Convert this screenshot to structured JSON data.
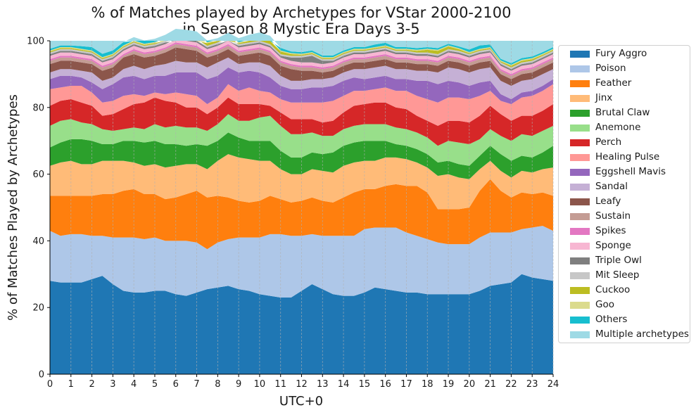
{
  "chart_data": {
    "type": "area",
    "stacked": true,
    "title": "% of Matches played by Archetypes for VStar 2000-2100\nin Season 8 Mystic Era Days 3-5",
    "xlabel": "UTC+0",
    "ylabel": "% of Matches Played by Archetypes",
    "xlim": [
      0,
      24
    ],
    "ylim": [
      0,
      100
    ],
    "x_ticks": [
      0,
      1,
      2,
      3,
      4,
      5,
      6,
      7,
      8,
      9,
      10,
      11,
      12,
      13,
      14,
      15,
      16,
      17,
      18,
      19,
      20,
      21,
      22,
      23,
      24
    ],
    "y_ticks": [
      0,
      20,
      40,
      60,
      80,
      100
    ],
    "grid": "vertical dashed",
    "legend_position": "outside right",
    "x": [
      0,
      0.5,
      1,
      1.5,
      2,
      2.5,
      3,
      3.5,
      4,
      4.5,
      5,
      5.5,
      6,
      6.5,
      7,
      7.5,
      8,
      8.5,
      9,
      9.5,
      10,
      10.5,
      11,
      11.5,
      12,
      12.5,
      13,
      13.5,
      14,
      14.5,
      15,
      15.5,
      16,
      16.5,
      17,
      17.5,
      18,
      18.5,
      19,
      19.5,
      20,
      20.5,
      21,
      21.5,
      22,
      22.5,
      23,
      23.5,
      24
    ],
    "series": [
      {
        "name": "Fury Aggro",
        "color": "#1f77b4",
        "values": [
          28,
          27.5,
          27.5,
          27.5,
          28.5,
          29.5,
          27,
          25,
          24.5,
          24.5,
          25,
          25,
          24,
          23.5,
          24.5,
          25.5,
          26,
          26.5,
          25.5,
          25,
          24,
          23.5,
          23,
          23,
          25,
          27,
          25.5,
          24,
          23.5,
          23.5,
          24.5,
          26,
          25.5,
          25,
          24.5,
          24.5,
          24,
          24,
          24,
          24,
          24,
          25,
          26.5,
          27,
          27.5,
          30,
          29,
          28.5,
          28
        ]
      },
      {
        "name": "Poison",
        "color": "#aec7e8",
        "values": [
          15,
          14,
          14.5,
          14.5,
          13,
          12,
          14,
          16,
          16.5,
          16,
          16,
          15,
          16,
          16.5,
          15,
          12,
          13.5,
          14,
          15.5,
          16,
          17,
          18.5,
          19,
          18.5,
          16.5,
          15,
          16,
          17.5,
          18,
          18,
          19,
          18,
          18.5,
          19,
          18,
          17,
          16.5,
          15.5,
          15,
          15,
          15,
          16,
          16,
          15.5,
          15,
          13.5,
          15,
          16,
          15
        ]
      },
      {
        "name": "Feather",
        "color": "#ff7f0e",
        "values": [
          10.5,
          12,
          11.5,
          11.5,
          12,
          12.5,
          13,
          14,
          14.5,
          13.5,
          13,
          12.5,
          13,
          14,
          15.5,
          15.5,
          14,
          12.5,
          11,
          10.5,
          11,
          11.5,
          10.5,
          10,
          10.5,
          11,
          10.5,
          10,
          11.5,
          13,
          12,
          11.5,
          12.5,
          13,
          14,
          15,
          14,
          10,
          10.5,
          10.5,
          11,
          14,
          16,
          12.5,
          10.5,
          11,
          10,
          10,
          10.5
        ]
      },
      {
        "name": "Jinx",
        "color": "#ffbb78",
        "values": [
          9,
          10,
          10.5,
          9.5,
          9.5,
          10,
          10,
          9,
          8,
          8.5,
          9,
          9.5,
          9.5,
          9,
          8,
          8.5,
          10.5,
          13,
          13,
          13,
          12,
          10.5,
          9,
          8.5,
          8,
          8.5,
          9,
          9,
          9.5,
          9,
          8.5,
          8.5,
          8.5,
          8,
          8,
          7,
          7.5,
          10,
          10.5,
          9.5,
          8.5,
          6.5,
          5.5,
          6,
          6,
          6.5,
          6.5,
          7,
          8.5
        ]
      },
      {
        "name": "Brutal Claw",
        "color": "#2ca02c",
        "values": [
          5.5,
          6,
          6.5,
          7.5,
          7,
          5,
          5,
          6,
          6.5,
          7,
          7,
          7,
          6.5,
          5.5,
          6,
          7,
          6,
          6.5,
          6,
          5.5,
          6,
          6,
          5.5,
          5,
          5,
          5,
          5,
          6,
          6,
          6,
          6,
          6,
          5,
          4,
          4,
          4,
          4,
          4,
          4,
          4,
          4,
          4,
          4.5,
          5,
          5,
          4.5,
          4.5,
          5,
          6.5
        ]
      },
      {
        "name": "Anemone",
        "color": "#98df8a",
        "values": [
          6.5,
          6.5,
          6,
          5,
          5,
          4.5,
          4,
          3.5,
          4,
          4,
          5,
          5,
          5.5,
          5.5,
          5,
          4.5,
          5,
          5.5,
          5,
          6,
          7,
          7.5,
          7.5,
          7,
          7,
          6,
          5.5,
          5,
          5,
          5,
          5,
          5,
          5,
          5,
          5,
          5,
          5,
          5,
          6,
          6.5,
          6.5,
          5,
          5,
          5.5,
          6,
          6.5,
          6.5,
          6.5,
          6
        ]
      },
      {
        "name": "Perch",
        "color": "#d62728",
        "values": [
          6,
          6,
          6,
          6,
          5.5,
          4,
          5,
          6,
          7,
          8,
          8,
          8,
          7,
          6,
          6,
          5,
          5,
          5,
          5,
          5,
          4,
          3,
          4,
          4.5,
          4.5,
          4,
          4,
          4.5,
          5,
          6,
          6,
          6.5,
          6.5,
          6,
          6,
          5,
          5,
          6,
          6,
          6.5,
          6.5,
          7,
          7,
          6.5,
          6,
          5.5,
          6,
          6,
          6.5
        ]
      },
      {
        "name": "Healing Pulse",
        "color": "#ff9896",
        "values": [
          5,
          4,
          4,
          5,
          4,
          4,
          4,
          4,
          3,
          2,
          1.5,
          2,
          3,
          4,
          3.5,
          3,
          3,
          4,
          4,
          5,
          4,
          4,
          4,
          5,
          5,
          5,
          6,
          6,
          5,
          4.5,
          4,
          4,
          4.5,
          5,
          5.5,
          6,
          6.5,
          7,
          7,
          7,
          7,
          6,
          4.5,
          4,
          5,
          5.5,
          6,
          6,
          6
        ]
      },
      {
        "name": "Eggshell Mavis",
        "color": "#9467bd",
        "values": [
          3,
          3.5,
          3,
          2.5,
          3,
          4,
          5,
          5.5,
          5.5,
          5,
          5,
          5.5,
          6,
          6.5,
          7,
          7.5,
          6.5,
          5,
          5.5,
          5,
          5.5,
          4.5,
          4,
          4,
          4,
          4.5,
          4.5,
          4.5,
          4.5,
          4,
          3.5,
          3.5,
          3.5,
          3.5,
          3.5,
          4.5,
          5.5,
          5.5,
          5,
          4.5,
          4,
          4,
          3,
          2,
          1.5,
          1.5,
          1.5,
          1.5,
          1.5
        ]
      },
      {
        "name": "Sandal",
        "color": "#c5b0d5",
        "values": [
          2,
          2,
          2,
          2,
          3,
          2.5,
          2,
          2.5,
          3,
          3,
          3,
          3.5,
          3.5,
          3,
          3,
          3.5,
          4,
          3,
          2.5,
          2.5,
          3,
          3.5,
          3,
          2.5,
          2.5,
          2.5,
          2.5,
          2.5,
          2.5,
          2.5,
          3,
          3,
          3,
          3,
          3,
          3,
          3,
          3.5,
          4,
          4,
          4,
          4,
          4,
          4,
          4,
          3.5,
          3.5,
          3.5,
          3
        ]
      },
      {
        "name": "Leafy",
        "color": "#8c564b",
        "values": [
          2.5,
          2.5,
          2.5,
          2.5,
          2.5,
          3,
          3,
          3.5,
          3.5,
          3.5,
          3,
          3.5,
          4,
          4,
          3.5,
          3,
          2.5,
          2.5,
          2.5,
          2.5,
          3,
          3,
          3,
          3.5,
          3,
          2.5,
          2,
          2,
          2,
          2,
          2,
          2,
          2,
          2,
          2,
          2,
          2,
          2,
          2,
          2,
          2,
          2,
          2,
          2,
          2,
          2,
          2,
          2,
          2
        ]
      },
      {
        "name": "Sustain",
        "color": "#c49c94",
        "values": [
          1,
          1,
          1,
          1,
          1,
          1,
          1,
          0.5,
          1,
          1,
          1,
          1,
          1,
          1,
          1,
          1,
          1,
          1,
          1,
          1,
          1,
          1,
          1,
          1,
          1,
          1,
          1,
          1,
          1,
          1,
          1,
          1,
          1,
          1,
          1,
          1,
          1,
          1,
          1,
          1,
          1,
          1,
          1,
          1,
          1,
          1,
          1,
          1,
          1
        ]
      },
      {
        "name": "Spikes",
        "color": "#e377c2",
        "values": [
          0.5,
          0.5,
          0.5,
          0.5,
          0.5,
          0.5,
          0.5,
          0.5,
          0.5,
          0.5,
          0.5,
          0.5,
          0.5,
          0.5,
          0.5,
          0.5,
          0.5,
          0.5,
          0.5,
          0.5,
          0.5,
          0.5,
          0.5,
          0.5,
          0.5,
          0.5,
          0.5,
          0.5,
          0.5,
          0.5,
          0.5,
          0.5,
          0.5,
          0.5,
          0.5,
          0.5,
          0.5,
          0.5,
          0.5,
          0.5,
          0.5,
          0.5,
          0.5,
          0.5,
          0.5,
          0.5,
          0.5,
          0.5,
          0.5
        ]
      },
      {
        "name": "Sponge",
        "color": "#f7b6d2",
        "values": [
          1,
          1,
          1,
          1,
          1,
          1,
          1,
          1,
          1,
          1,
          1,
          1,
          1,
          1,
          1,
          1,
          1,
          1,
          1,
          1,
          1,
          1,
          1,
          1,
          1,
          1,
          1,
          1,
          1,
          1,
          1,
          1,
          1,
          1,
          1,
          1,
          1,
          1,
          1,
          1,
          1,
          1,
          1,
          1,
          1,
          1,
          1,
          1,
          1
        ]
      },
      {
        "name": "Triple Owl",
        "color": "#7f7f7f",
        "values": [
          0.5,
          0.5,
          0.5,
          0.5,
          0.5,
          0.5,
          0.5,
          0.5,
          0.5,
          0.5,
          0.5,
          0.5,
          0.5,
          0.5,
          0.5,
          0.5,
          0.5,
          0.5,
          0.5,
          0.5,
          0.5,
          0.5,
          0.5,
          1,
          1.5,
          2,
          1,
          0.5,
          0.5,
          0.5,
          0.5,
          0.5,
          0.5,
          0.5,
          0.5,
          0.5,
          0.5,
          0.5,
          0.5,
          0.5,
          0.5,
          0.5,
          0.5,
          0.5,
          0.5,
          0.5,
          0.5,
          0.5,
          0.5
        ]
      },
      {
        "name": "Mit Sleep",
        "color": "#c7c7c7",
        "values": [
          0.5,
          0.5,
          0.5,
          0.5,
          0.5,
          0.5,
          0.5,
          0.5,
          0.5,
          0.5,
          0.5,
          0.5,
          0.5,
          0.5,
          0.5,
          0.5,
          0.5,
          0.5,
          0.5,
          0.5,
          0.5,
          0.5,
          0.5,
          0.5,
          0.5,
          0.5,
          0.5,
          0.5,
          0.5,
          0.5,
          0.5,
          0.5,
          0.5,
          0.5,
          0.5,
          0.5,
          0.5,
          0.5,
          0.5,
          0.5,
          0.5,
          0.5,
          0.5,
          0.5,
          0.5,
          0.5,
          0.5,
          0.5,
          0.5
        ]
      },
      {
        "name": "Cuckoo",
        "color": "#bcbd22",
        "values": [
          0.3,
          0.3,
          0.3,
          0.3,
          0.3,
          0.3,
          0.3,
          0.3,
          0.3,
          0.3,
          0.3,
          0.5,
          0.8,
          1,
          1.2,
          0.8,
          0.5,
          0.3,
          0.3,
          0.5,
          1,
          1.2,
          0.8,
          0.5,
          0.3,
          0.3,
          0.3,
          0.3,
          0.3,
          0.3,
          0.3,
          0.3,
          0.3,
          0.3,
          0.3,
          0.5,
          0.8,
          1,
          0.8,
          0.5,
          0.3,
          0.3,
          0.3,
          0.3,
          0.5,
          0.5,
          0.5,
          0.3,
          0.3
        ]
      },
      {
        "name": "Goo",
        "color": "#dbdb8d",
        "values": [
          0.3,
          0.3,
          0.3,
          0.3,
          0.3,
          0.3,
          0.3,
          0.3,
          0.3,
          0.3,
          0.3,
          0.3,
          0.3,
          0.3,
          0.3,
          0.3,
          0.3,
          0.3,
          0.3,
          0.3,
          0.3,
          0.3,
          0.3,
          0.3,
          0.3,
          0.3,
          0.3,
          0.3,
          0.3,
          0.3,
          0.3,
          0.3,
          0.3,
          0.3,
          0.3,
          0.3,
          0.3,
          0.3,
          0.3,
          0.3,
          0.3,
          0.3,
          0.3,
          0.3,
          0.3,
          0.3,
          0.3,
          0.3,
          0.3
        ]
      },
      {
        "name": "Others",
        "color": "#17becf",
        "values": [
          0.5,
          0.5,
          0.5,
          0.8,
          1,
          1,
          1,
          1,
          1,
          1,
          1,
          1,
          1,
          1,
          0.8,
          0.5,
          0.5,
          0.8,
          1.2,
          1.5,
          1.2,
          1,
          0.8,
          0.5,
          0.5,
          0.5,
          0.5,
          0.5,
          0.5,
          0.5,
          0.5,
          0.8,
          0.8,
          0.5,
          0.5,
          0.5,
          0.5,
          0.5,
          0.5,
          0.5,
          0.8,
          1,
          0.8,
          0.5,
          0.5,
          0.5,
          0.5,
          0.5,
          0.5
        ]
      }
    ],
    "remainder_series": {
      "name": "Multiple archetypes",
      "color": "#9edae5"
    }
  }
}
